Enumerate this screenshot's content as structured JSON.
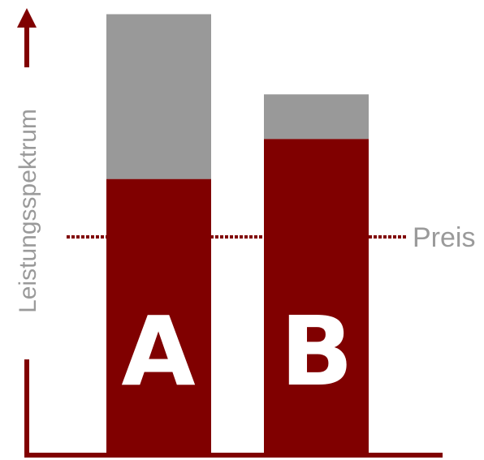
{
  "chart_data": {
    "type": "bar",
    "stacked": true,
    "categories": [
      "A",
      "B"
    ],
    "series": [
      {
        "values": [
          62,
          71
        ],
        "color": "#800000"
      },
      {
        "values": [
          37,
          10
        ],
        "color": "#999999"
      }
    ],
    "reference_line": {
      "label": "Preis",
      "value": 49,
      "style": "dotted",
      "color": "#800000"
    },
    "ylabel": "Leistungsspektrum",
    "xlabel": "",
    "ylim": [
      0,
      100
    ],
    "axis_color": "#800000",
    "grid": false,
    "legend": "none"
  }
}
